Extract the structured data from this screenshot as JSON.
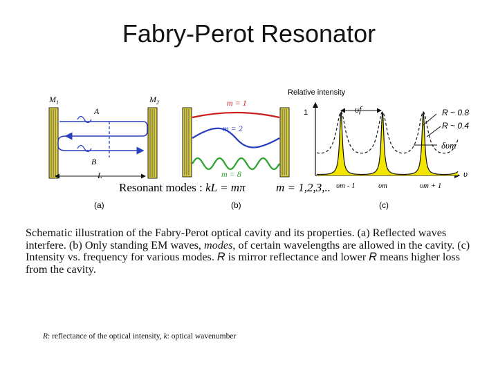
{
  "slide": {
    "title": "Fabry-Perot Resonator"
  },
  "panel_a": {
    "mirror1_label": "M",
    "mirror1_sub": "1",
    "mirror2_label": "M",
    "mirror2_sub": "2",
    "wave_a_label": "A",
    "wave_b_label": "B",
    "length_label": "L",
    "panel_label": "(a)"
  },
  "panel_b": {
    "mode1_label": "m = 1",
    "mode2_label": "m = 2",
    "mode8_label": "m = 8",
    "resonant_prefix": "Resonant modes : ",
    "resonant_eq": "kL = mπ",
    "mode_range": "m = 1,2,3,..",
    "panel_label": "(b)",
    "mode_colors": {
      "m1": "#cc1f1f",
      "m2": "#2a3fbf",
      "m8": "#2ea52e"
    }
  },
  "panel_c": {
    "y_axis_title": "Relative intensity",
    "y_tick_1": "1",
    "fsr_label": "υf",
    "r_high_label": "R ~ 0.8",
    "r_low_label": "R ~ 0.4",
    "linewidth_label": "δυm",
    "x_axis_symbol": "υ",
    "x_tick_left": "υm - 1",
    "x_tick_mid": "υm",
    "x_tick_right": "υm + 1",
    "panel_label": "(c)",
    "peak_fill_color": "#f2e600"
  },
  "caption": {
    "part1": "Schematic illustration of the Fabry-Perot optical cavity and its properties. (a) Reflected waves interfere. (b) Only standing EM waves, ",
    "modes_word": "modes",
    "part2": ", of certain wavelengths are allowed in the cavity. (c) Intensity vs. frequency for various modes. ",
    "r_symbol_1": "R",
    "part3": " is mirror reflectance and lower ",
    "r_symbol_2": "R",
    "part4": " means higher loss from the cavity."
  },
  "footnote": {
    "r_symbol": "R",
    "r_text": ": reflectance of the optical intensity, ",
    "k_symbol": "k",
    "k_text": ": optical wavenumber"
  }
}
